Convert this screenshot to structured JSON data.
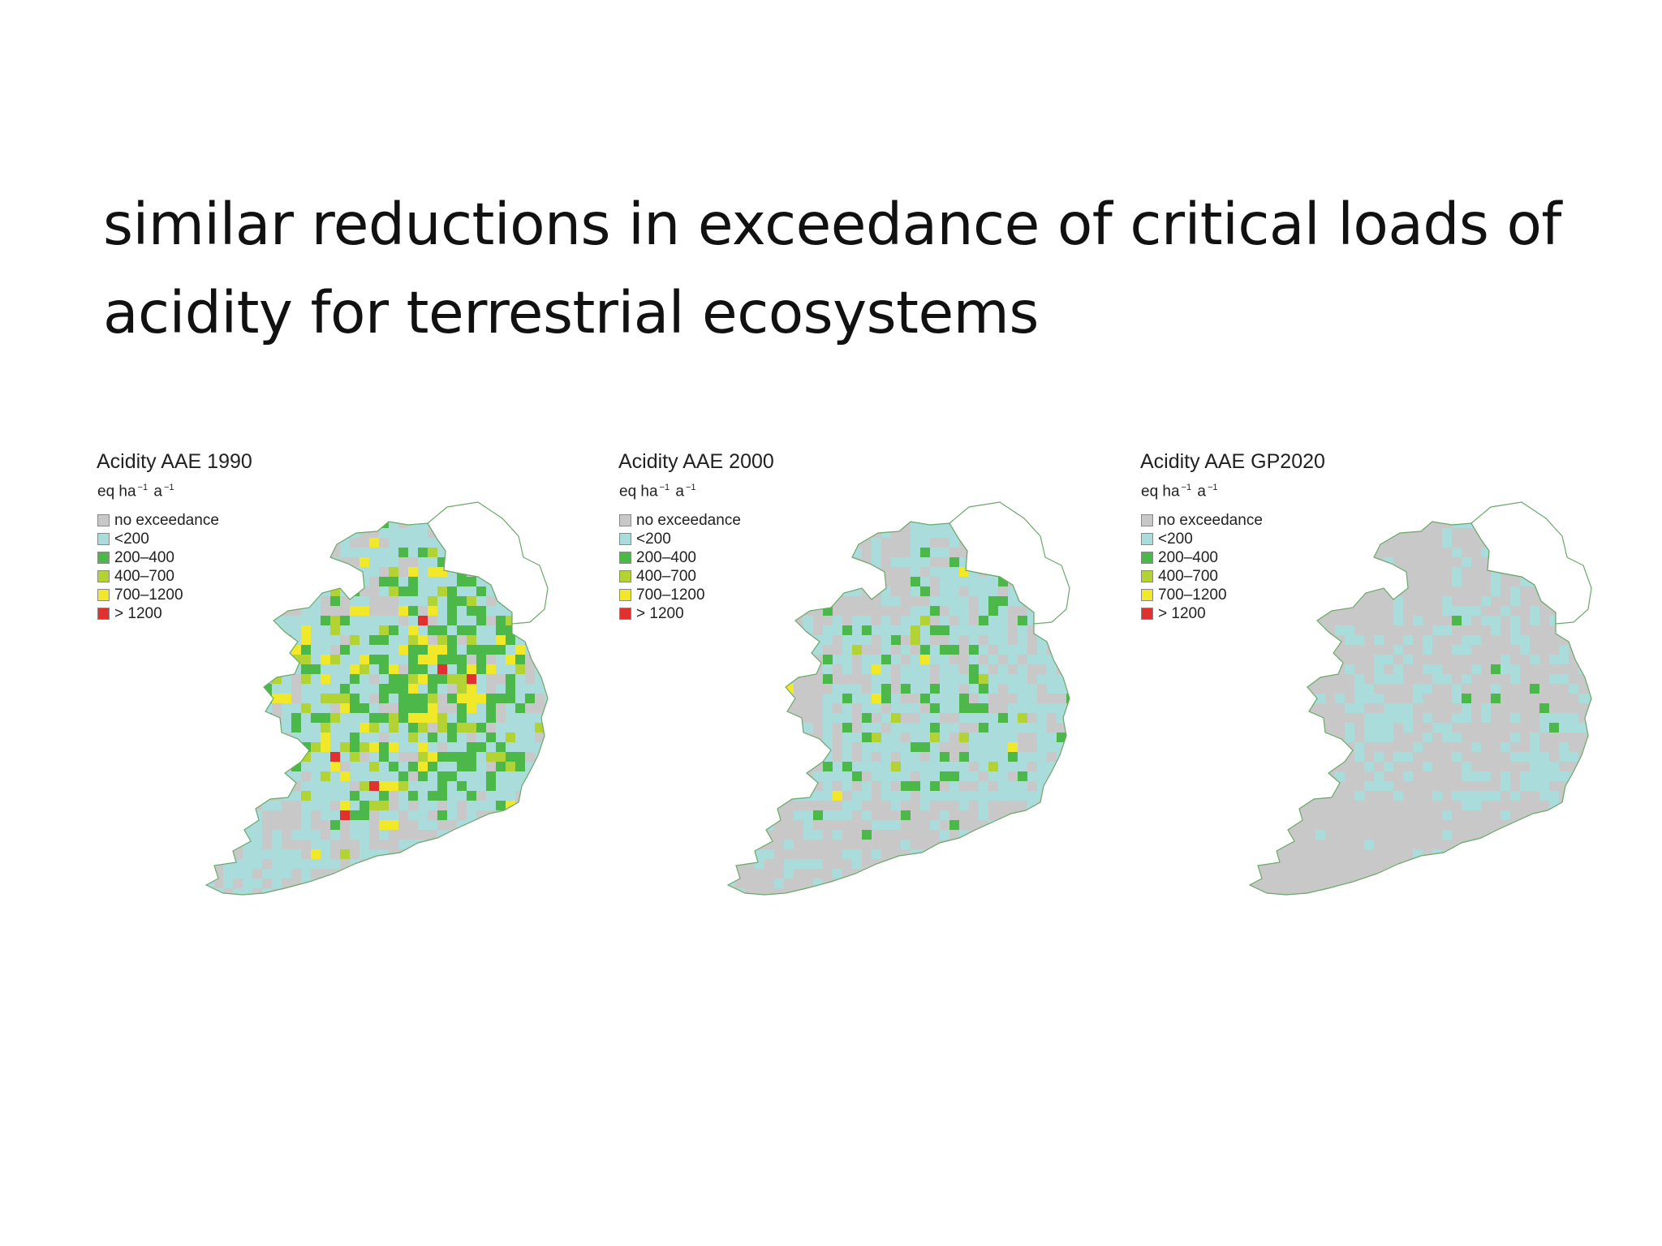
{
  "slide": {
    "title": "similar reductions in exceedance of critical loads of acidity for terrestrial ecosystems"
  },
  "legend": {
    "unit_base": "eq ha",
    "unit_exp_area": "−1",
    "unit_time": "a",
    "unit_exp_time": "−1",
    "items": [
      {
        "label": "no exceedance",
        "color": "#c8c8c8"
      },
      {
        "label": "<200",
        "color": "#aadcdc"
      },
      {
        "label": "200–400",
        "color": "#4db84a"
      },
      {
        "label": "400–700",
        "color": "#b3d335"
      },
      {
        "label": "700–1200",
        "color": "#f2e82a"
      },
      {
        "label": "> 1200",
        "color": "#e03030"
      }
    ]
  },
  "maps": [
    {
      "title": "Acidity AAE 1990",
      "grey_share": "low",
      "exceedance_level": "high"
    },
    {
      "title": "Acidity AAE 2000",
      "grey_share": "medium",
      "exceedance_level": "medium"
    },
    {
      "title": "Acidity AAE GP2020",
      "grey_share": "high",
      "exceedance_level": "low"
    }
  ]
}
